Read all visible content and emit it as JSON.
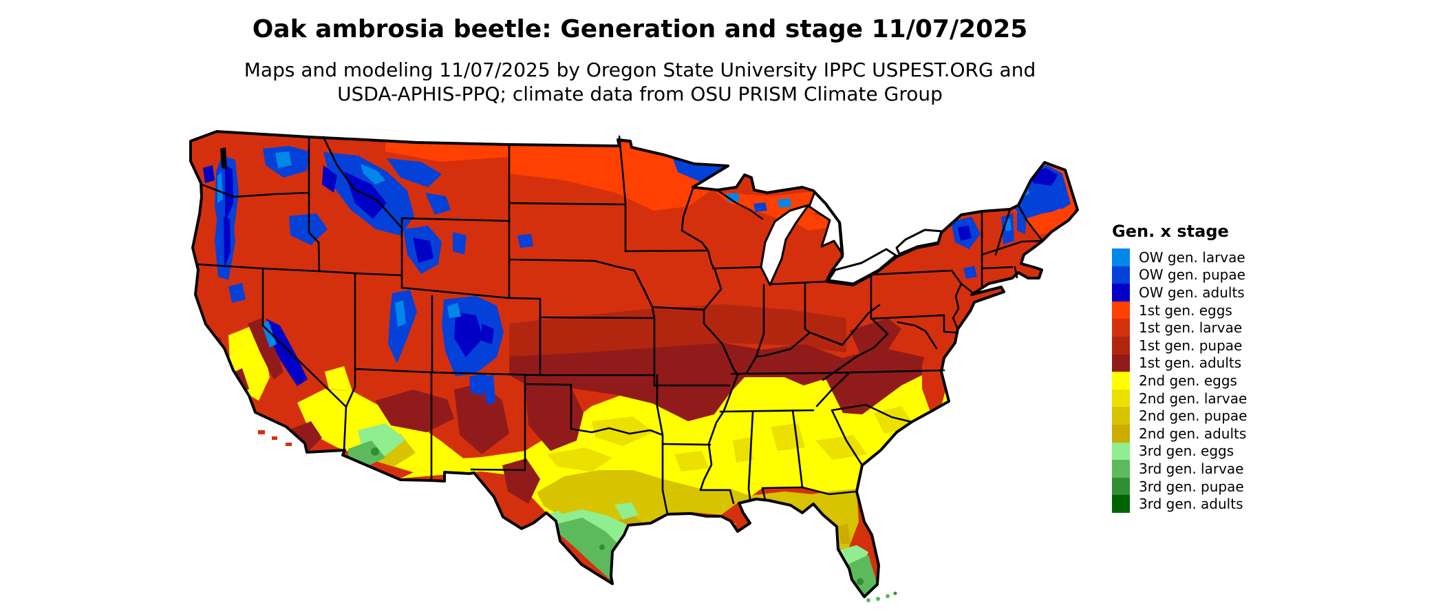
{
  "header": {
    "title": "Oak ambrosia beetle: Generation and stage 11/07/2025",
    "subtitle_line1": "Maps and modeling 11/07/2025 by Oregon State University IPPC USPEST.ORG and",
    "subtitle_line2": "USDA-APHIS-PPQ; climate data from OSU PRISM Climate Group"
  },
  "legend": {
    "title": "Gen. x stage",
    "entries": [
      {
        "key": "ow_larvae",
        "label": "OW gen. larvae",
        "color": "#0087E8"
      },
      {
        "key": "ow_pupae",
        "label": "OW gen. pupae",
        "color": "#0441D9"
      },
      {
        "key": "ow_adults",
        "label": "OW gen. adults",
        "color": "#0100C6"
      },
      {
        "key": "g1_eggs",
        "label": "1st gen. eggs",
        "color": "#FF4000"
      },
      {
        "key": "g1_larvae",
        "label": "1st gen. larvae",
        "color": "#D5300E"
      },
      {
        "key": "g1_pupae",
        "label": "1st gen. pupae",
        "color": "#B2260F"
      },
      {
        "key": "g1_adults",
        "label": "1st gen. adults",
        "color": "#911B1B"
      },
      {
        "key": "g2_eggs",
        "label": "2nd gen. eggs",
        "color": "#FFFF00"
      },
      {
        "key": "g2_larvae",
        "label": "2nd gen. larvae",
        "color": "#EBE000"
      },
      {
        "key": "g2_pupae",
        "label": "2nd gen. pupae",
        "color": "#D7C300"
      },
      {
        "key": "g2_adults",
        "label": "2nd gen. adults",
        "color": "#CCAC00"
      },
      {
        "key": "g3_eggs",
        "label": "3rd gen. eggs",
        "color": "#90EE90"
      },
      {
        "key": "g3_larvae",
        "label": "3rd gen. larvae",
        "color": "#5CBA5C"
      },
      {
        "key": "g3_pupae",
        "label": "3rd gen. pupae",
        "color": "#2F8F32"
      },
      {
        "key": "g3_adults",
        "label": "3rd gen. adults",
        "color": "#006400"
      }
    ]
  }
}
